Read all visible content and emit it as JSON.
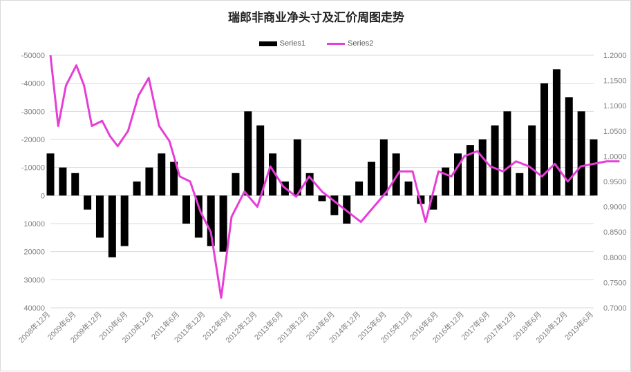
{
  "chart_data": {
    "type": "bar",
    "title": "瑞郎非商业净头寸及汇价周图走势",
    "xlabel": "",
    "ylabel": "",
    "legend": [
      "Series1",
      "Series2"
    ],
    "legend_position": "top",
    "grid": true,
    "left_axis": {
      "reversed": true,
      "ylim": [
        -50000,
        40000
      ],
      "ticks": [
        -50000,
        -40000,
        -30000,
        -20000,
        -10000,
        0,
        10000,
        20000,
        30000,
        40000
      ],
      "tick_labels": [
        "-50000",
        "-40000",
        "-30000",
        "-20000",
        "-10000",
        "0",
        "10000",
        "20000",
        "30000",
        "40000"
      ]
    },
    "right_axis": {
      "ylim": [
        0.7,
        1.2
      ],
      "ticks": [
        0.7,
        0.75,
        0.8,
        0.85,
        0.9,
        0.95,
        1.0,
        1.05,
        1.1,
        1.15,
        1.2
      ],
      "tick_labels": [
        "0.7000",
        "0.7500",
        "0.8000",
        "0.8500",
        "0.9000",
        "0.9500",
        "1.0000",
        "1.0500",
        "1.1000",
        "1.1500",
        "1.2000"
      ]
    },
    "x_tick_labels": [
      "2008年12月",
      "2009年6月",
      "2009年12月",
      "2010年6月",
      "2010年12月",
      "2011年6月",
      "2011年12月",
      "2012年6月",
      "2012年12月",
      "2013年6月",
      "2013年12月",
      "2014年6月",
      "2014年12月",
      "2015年6月",
      "2015年12月",
      "2016年6月",
      "2016年12月",
      "2017年6月",
      "2017年12月",
      "2018年6月",
      "2018年12月",
      "2019年6月"
    ],
    "series": [
      {
        "name": "Series1",
        "type": "bar",
        "axis": "left",
        "color": "#000000",
        "x": [
          0,
          1,
          2,
          3,
          4,
          5,
          6,
          7,
          8,
          9,
          10,
          11,
          12,
          13,
          14,
          15,
          16,
          17,
          18,
          19,
          20,
          21,
          22,
          23,
          24,
          25,
          26,
          27,
          28,
          29,
          30,
          31,
          32,
          33,
          34,
          35,
          36,
          37,
          38,
          39,
          40,
          41,
          42,
          43,
          44
        ],
        "values": [
          -15000,
          -10000,
          -8000,
          5000,
          15000,
          22000,
          18000,
          -5000,
          -10000,
          -15000,
          -12000,
          10000,
          15000,
          18000,
          20000,
          -8000,
          -30000,
          -25000,
          -15000,
          -5000,
          -20000,
          -8000,
          2000,
          7000,
          10000,
          -5000,
          -12000,
          -20000,
          -15000,
          -5000,
          3000,
          5000,
          -10000,
          -15000,
          -18000,
          -20000,
          -25000,
          -30000,
          -8000,
          -25000,
          -40000,
          -45000,
          -35000,
          -30000,
          -20000
        ]
      },
      {
        "name": "Series2",
        "type": "line",
        "axis": "right",
        "color": "#e63ed7",
        "x": [
          0,
          0.3,
          0.6,
          1,
          1.3,
          1.6,
          2,
          2.3,
          2.6,
          3,
          3.4,
          3.8,
          4.2,
          4.6,
          5,
          5.4,
          5.8,
          6.2,
          6.6,
          7,
          7.5,
          8,
          8.5,
          9,
          9.5,
          10,
          10.5,
          11,
          11.5,
          12,
          12.5,
          13,
          13.5,
          14,
          14.5,
          15,
          15.5,
          16,
          16.5,
          17,
          17.5,
          18,
          18.5,
          19,
          19.5,
          20,
          20.5,
          21,
          21.5,
          22
        ],
        "values": [
          1.2,
          1.06,
          1.14,
          1.18,
          1.14,
          1.06,
          1.07,
          1.04,
          1.02,
          1.05,
          1.12,
          1.155,
          1.06,
          1.03,
          0.96,
          0.95,
          0.89,
          0.85,
          0.72,
          0.88,
          0.93,
          0.9,
          0.98,
          0.94,
          0.92,
          0.96,
          0.93,
          0.91,
          0.89,
          0.87,
          0.9,
          0.93,
          0.97,
          0.97,
          0.87,
          0.97,
          0.96,
          1.0,
          1.01,
          0.98,
          0.97,
          0.99,
          0.98,
          0.96,
          0.985,
          0.95,
          0.98,
          0.985,
          0.99,
          0.99
        ]
      }
    ]
  }
}
